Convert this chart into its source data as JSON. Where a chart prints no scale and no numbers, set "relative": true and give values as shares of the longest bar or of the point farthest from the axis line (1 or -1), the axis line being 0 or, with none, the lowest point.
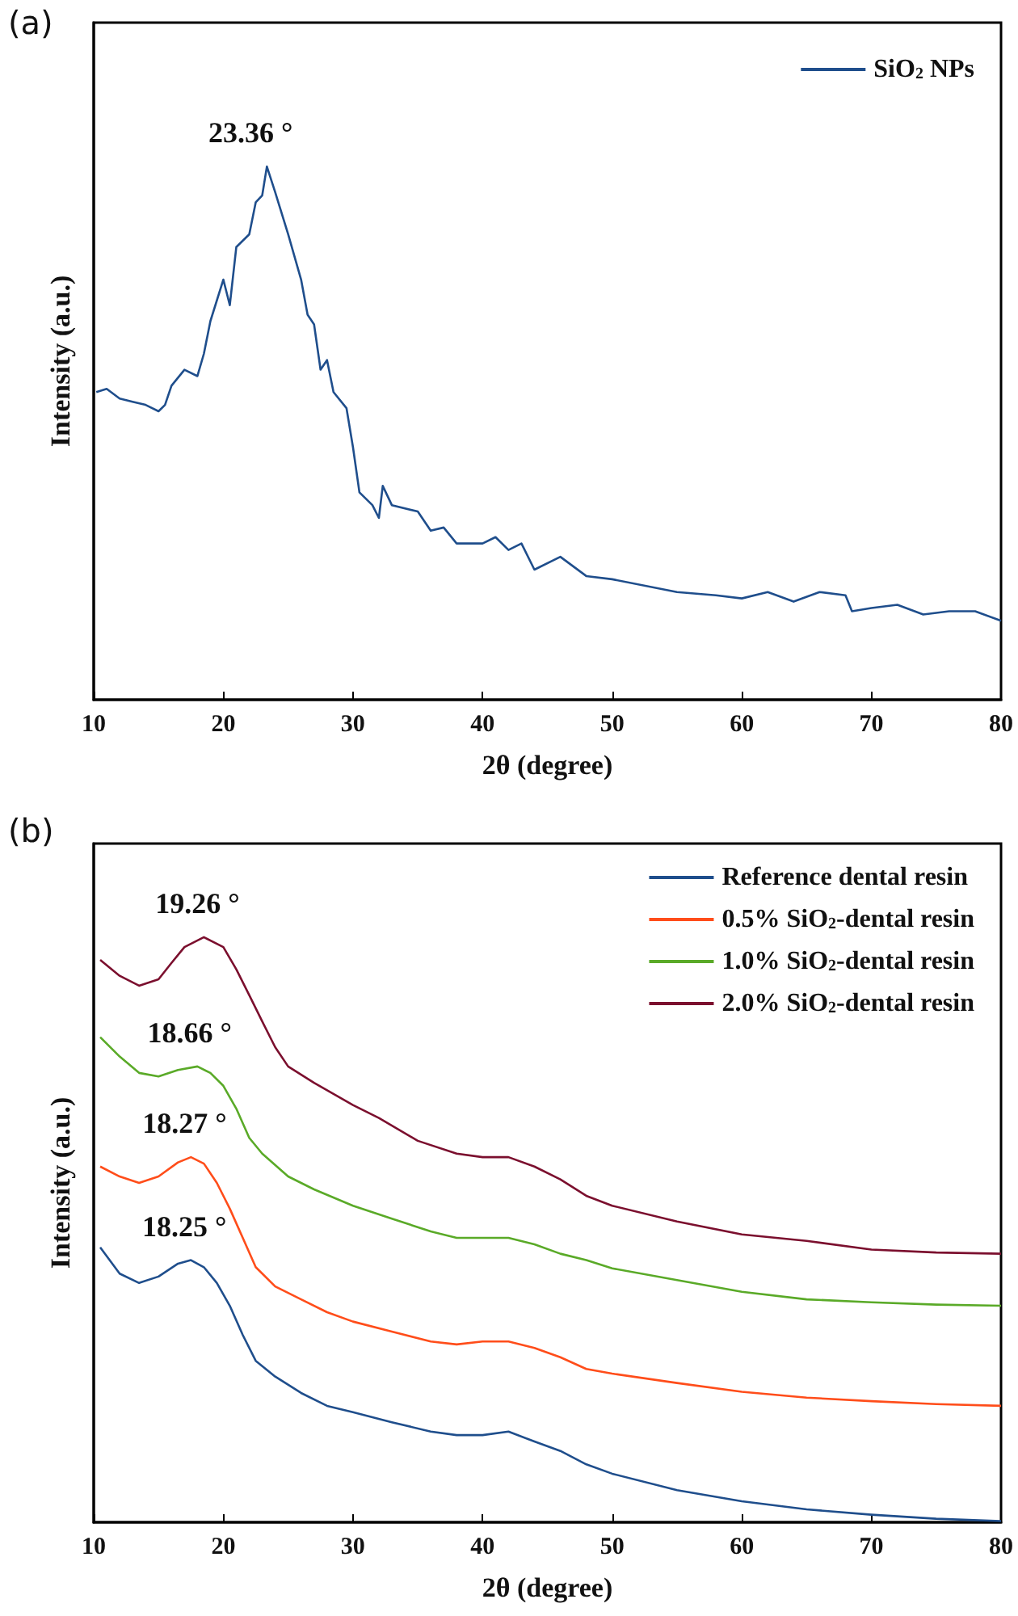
{
  "chart_data": [
    {
      "type": "line",
      "relative": true,
      "xlabel": "2θ (degree)",
      "ylabel": "Intensity (a.u.)",
      "xlim": [
        10,
        80
      ],
      "xticks": [
        10,
        20,
        30,
        40,
        50,
        60,
        70,
        80
      ],
      "legend": "top right",
      "grid": false,
      "marker": "none",
      "tick_labels": "x",
      "x": [
        10.2,
        11,
        12,
        13,
        14,
        15,
        15.5,
        16,
        17,
        18,
        18.5,
        19,
        20,
        20.5,
        21,
        22,
        22.5,
        23,
        23.36,
        24,
        25,
        26,
        26.5,
        27,
        27.5,
        28,
        28.5,
        29.5,
        30,
        30.5,
        31.5,
        32,
        32.3,
        33,
        35,
        36,
        37,
        38,
        40,
        41,
        42,
        43,
        44,
        46,
        48,
        50,
        55,
        58,
        60,
        62,
        64,
        66,
        68,
        68.5,
        70,
        72,
        74,
        76,
        78,
        80
      ],
      "series": [
        {
          "name": "SiO$_{2}$ NPs",
          "color": "#1f4e8c",
          "values": [
            0.577,
            0.583,
            0.565,
            0.559,
            0.553,
            0.541,
            0.553,
            0.589,
            0.619,
            0.607,
            0.649,
            0.71,
            0.788,
            0.74,
            0.849,
            0.873,
            0.933,
            0.946,
            1.0,
            0.952,
            0.873,
            0.788,
            0.722,
            0.704,
            0.619,
            0.637,
            0.577,
            0.547,
            0.474,
            0.389,
            0.365,
            0.341,
            0.401,
            0.365,
            0.353,
            0.317,
            0.323,
            0.293,
            0.293,
            0.305,
            0.281,
            0.293,
            0.244,
            0.268,
            0.232,
            0.226,
            0.202,
            0.196,
            0.19,
            0.202,
            0.184,
            0.202,
            0.196,
            0.166,
            0.172,
            0.178,
            0.16,
            0.166,
            0.166,
            0.148
          ]
        }
      ],
      "annotations": [
        "(a)",
        {
          "text": "23.36 °",
          "x": 23.36,
          "y": 1.0
        }
      ]
    },
    {
      "type": "line",
      "relative": true,
      "xlabel": "2θ (degree)",
      "ylabel": "Intensity (a.u.)",
      "xlim": [
        10,
        80
      ],
      "xticks": [
        10,
        20,
        30,
        40,
        50,
        60,
        70,
        80
      ],
      "legend": "top right",
      "grid": false,
      "marker": "none",
      "tick_labels": "x",
      "series": [
        {
          "name": "Reference dental resin",
          "color": "#1f4e8c",
          "x": [
            10.5,
            12,
            13.5,
            15,
            16.5,
            17.5,
            18.5,
            19.5,
            20.5,
            21.5,
            22.5,
            24,
            26,
            28,
            30,
            33,
            36,
            38,
            40,
            42,
            44,
            46,
            48,
            50,
            55,
            60,
            65,
            70,
            75,
            80
          ],
          "values": [
            0.47,
            0.425,
            0.409,
            0.42,
            0.442,
            0.448,
            0.436,
            0.409,
            0.37,
            0.32,
            0.276,
            0.249,
            0.221,
            0.199,
            0.188,
            0.171,
            0.155,
            0.149,
            0.149,
            0.155,
            0.138,
            0.122,
            0.099,
            0.083,
            0.055,
            0.036,
            0.022,
            0.013,
            0.006,
            0.002
          ]
        },
        {
          "name": "0.5% SiO$_{2}$-dental resin",
          "color": "#ff4d1a",
          "x": [
            10.5,
            12,
            13.5,
            15,
            16.5,
            17.5,
            18.5,
            19.5,
            20.5,
            21.5,
            22.5,
            24,
            26,
            28,
            30,
            33,
            36,
            38,
            40,
            42,
            44,
            46,
            48,
            50,
            55,
            60,
            65,
            70,
            75,
            80
          ],
          "values": [
            0.608,
            0.591,
            0.58,
            0.591,
            0.615,
            0.624,
            0.613,
            0.58,
            0.536,
            0.486,
            0.436,
            0.403,
            0.381,
            0.359,
            0.343,
            0.326,
            0.309,
            0.304,
            0.309,
            0.309,
            0.298,
            0.282,
            0.262,
            0.254,
            0.238,
            0.223,
            0.213,
            0.207,
            0.202,
            0.199
          ]
        },
        {
          "name": "1.0% SiO$_{2}$-dental resin",
          "color": "#5aaa28",
          "x": [
            10.5,
            12,
            13.5,
            15,
            16.5,
            18,
            19,
            20,
            21,
            22,
            23,
            25,
            27,
            30,
            33,
            36,
            38,
            40,
            42,
            44,
            46,
            48,
            50,
            55,
            60,
            65,
            70,
            75,
            80
          ],
          "values": [
            0.829,
            0.796,
            0.768,
            0.762,
            0.773,
            0.779,
            0.768,
            0.746,
            0.707,
            0.657,
            0.63,
            0.591,
            0.569,
            0.541,
            0.519,
            0.497,
            0.486,
            0.486,
            0.486,
            0.475,
            0.459,
            0.448,
            0.434,
            0.414,
            0.394,
            0.381,
            0.376,
            0.372,
            0.37
          ]
        },
        {
          "name": "2.0% SiO$_{2}$-dental resin",
          "color": "#7b0f2e",
          "x": [
            10.5,
            12,
            13.5,
            15,
            16,
            17,
            18.5,
            20,
            21,
            22,
            23,
            24,
            25,
            27,
            30,
            32,
            35,
            38,
            40,
            42,
            44,
            46,
            48,
            50,
            55,
            60,
            65,
            70,
            75,
            80
          ],
          "values": [
            0.961,
            0.934,
            0.917,
            0.928,
            0.956,
            0.983,
            1.0,
            0.983,
            0.945,
            0.901,
            0.856,
            0.812,
            0.779,
            0.751,
            0.713,
            0.691,
            0.652,
            0.63,
            0.624,
            0.624,
            0.608,
            0.586,
            0.558,
            0.541,
            0.514,
            0.492,
            0.481,
            0.466,
            0.461,
            0.459
          ]
        }
      ],
      "annotations": [
        "(b)",
        {
          "text": "19.26 °",
          "x": 19.26,
          "y": 1.0
        },
        {
          "text": "18.66 °",
          "x": 18.66,
          "y": 0.779
        },
        {
          "text": "18.27 °",
          "x": 18.27,
          "y": 0.624
        },
        {
          "text": "18.25 °",
          "x": 18.25,
          "y": 0.448
        }
      ]
    }
  ]
}
